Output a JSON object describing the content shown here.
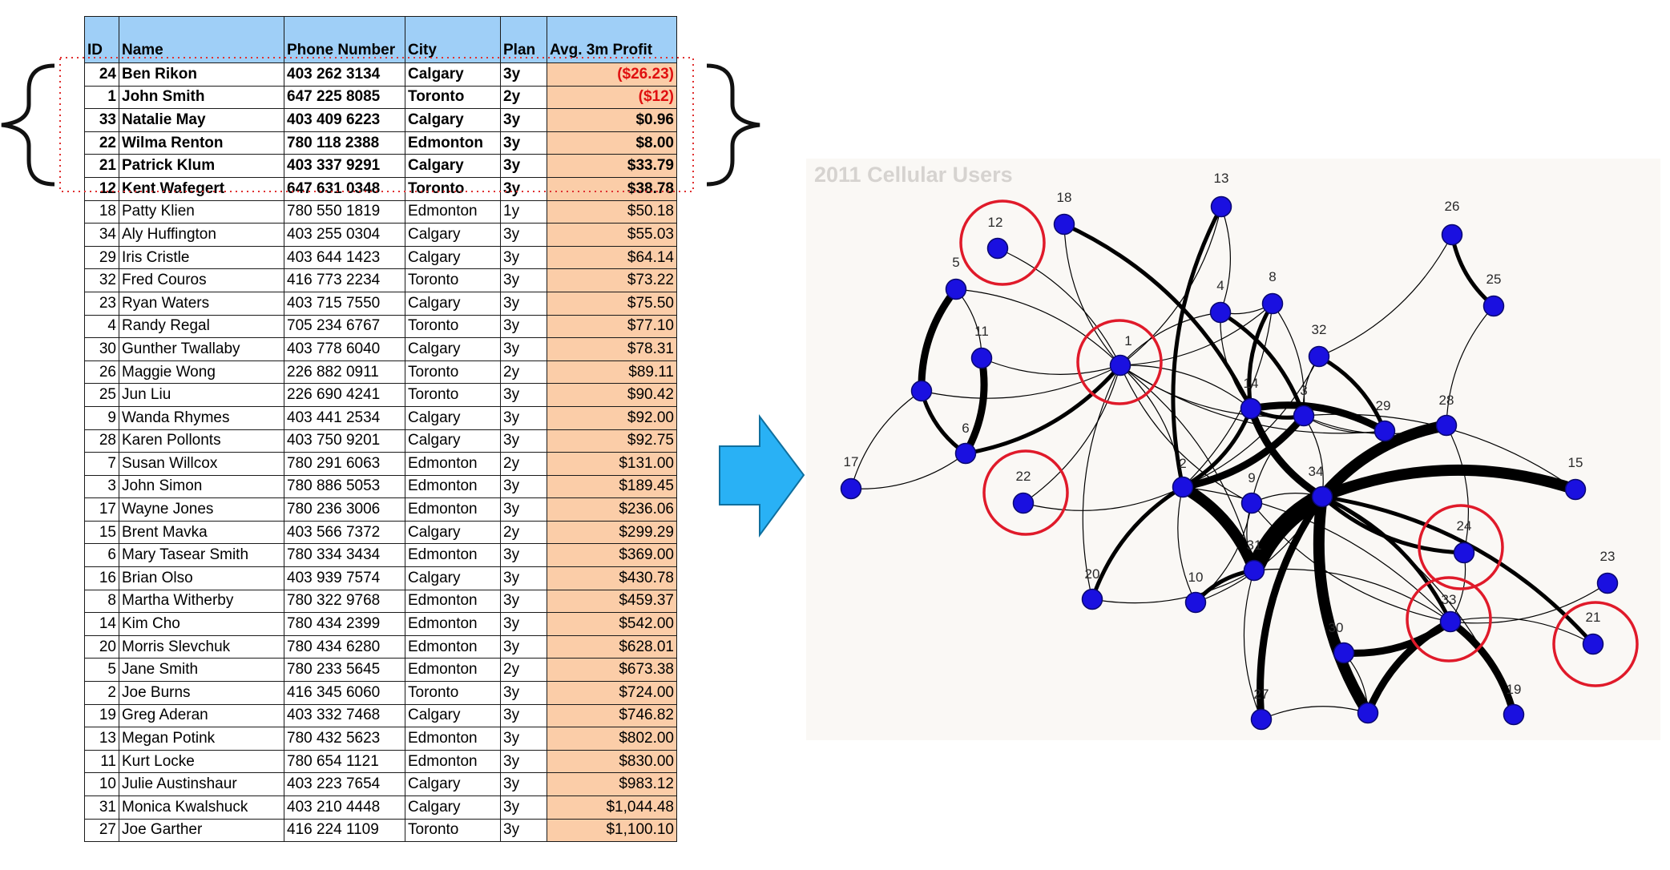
{
  "table": {
    "headers": [
      "ID",
      "Name",
      "Phone Number",
      "City",
      "Plan",
      "Avg. 3m Profit"
    ],
    "rows": [
      {
        "id": "24",
        "name": "Ben Rikon",
        "phone": "403 262 3134",
        "city": "Calgary",
        "plan": "3y",
        "profit": "($26.23)",
        "negative": true,
        "highlight": true
      },
      {
        "id": "1",
        "name": "John Smith",
        "phone": "647 225 8085",
        "city": "Toronto",
        "plan": "2y",
        "profit": "($12)",
        "negative": true,
        "highlight": true
      },
      {
        "id": "33",
        "name": "Natalie May",
        "phone": "403 409 6223",
        "city": "Calgary",
        "plan": "3y",
        "profit": "$0.96",
        "negative": false,
        "highlight": true
      },
      {
        "id": "22",
        "name": "Wilma Renton",
        "phone": "780 118 2388",
        "city": "Edmonton",
        "plan": "3y",
        "profit": "$8.00",
        "negative": false,
        "highlight": true
      },
      {
        "id": "21",
        "name": "Patrick Klum",
        "phone": "403 337 9291",
        "city": "Calgary",
        "plan": "3y",
        "profit": "$33.79",
        "negative": false,
        "highlight": true
      },
      {
        "id": "12",
        "name": "Kent Wafegert",
        "phone": "647 631 0348",
        "city": "Toronto",
        "plan": "3y",
        "profit": "$38.78",
        "negative": false,
        "highlight": true
      },
      {
        "id": "18",
        "name": "Patty Klien",
        "phone": "780 550 1819",
        "city": "Edmonton",
        "plan": "1y",
        "profit": "$50.18",
        "negative": false,
        "highlight": false
      },
      {
        "id": "34",
        "name": "Aly Huffington",
        "phone": "403 255 0304",
        "city": "Calgary",
        "plan": "3y",
        "profit": "$55.03",
        "negative": false,
        "highlight": false
      },
      {
        "id": "29",
        "name": "Iris Cristle",
        "phone": "403 644 1423",
        "city": "Calgary",
        "plan": "3y",
        "profit": "$64.14",
        "negative": false,
        "highlight": false
      },
      {
        "id": "32",
        "name": "Fred Couros",
        "phone": "416 773 2234",
        "city": "Toronto",
        "plan": "3y",
        "profit": "$73.22",
        "negative": false,
        "highlight": false
      },
      {
        "id": "23",
        "name": "Ryan Waters",
        "phone": "403 715 7550",
        "city": "Calgary",
        "plan": "3y",
        "profit": "$75.50",
        "negative": false,
        "highlight": false
      },
      {
        "id": "4",
        "name": "Randy Regal",
        "phone": "705 234 6767",
        "city": "Toronto",
        "plan": "3y",
        "profit": "$77.10",
        "negative": false,
        "highlight": false
      },
      {
        "id": "30",
        "name": "Gunther Twallaby",
        "phone": "403 778 6040",
        "city": "Calgary",
        "plan": "3y",
        "profit": "$78.31",
        "negative": false,
        "highlight": false
      },
      {
        "id": "26",
        "name": "Maggie Wong",
        "phone": "226 882 0911",
        "city": "Toronto",
        "plan": "2y",
        "profit": "$89.11",
        "negative": false,
        "highlight": false
      },
      {
        "id": "25",
        "name": "Jun Liu",
        "phone": "226 690 4241",
        "city": "Toronto",
        "plan": "3y",
        "profit": "$90.42",
        "negative": false,
        "highlight": false
      },
      {
        "id": "9",
        "name": "Wanda Rhymes",
        "phone": "403 441 2534",
        "city": "Calgary",
        "plan": "3y",
        "profit": "$92.00",
        "negative": false,
        "highlight": false
      },
      {
        "id": "28",
        "name": "Karen Pollonts",
        "phone": "403 750 9201",
        "city": "Calgary",
        "plan": "3y",
        "profit": "$92.75",
        "negative": false,
        "highlight": false
      },
      {
        "id": "7",
        "name": "Susan Willcox",
        "phone": "780 291 6063",
        "city": "Edmonton",
        "plan": "2y",
        "profit": "$131.00",
        "negative": false,
        "highlight": false
      },
      {
        "id": "3",
        "name": "John Simon",
        "phone": "780 886 5053",
        "city": "Edmonton",
        "plan": "3y",
        "profit": "$189.45",
        "negative": false,
        "highlight": false
      },
      {
        "id": "17",
        "name": "Wayne Jones",
        "phone": "780 236 3006",
        "city": "Edmonton",
        "plan": "3y",
        "profit": "$236.06",
        "negative": false,
        "highlight": false
      },
      {
        "id": "15",
        "name": "Brent Mavka",
        "phone": "403 566 7372",
        "city": "Calgary",
        "plan": "2y",
        "profit": "$299.29",
        "negative": false,
        "highlight": false
      },
      {
        "id": "6",
        "name": "Mary Tasear Smith",
        "phone": "780 334 3434",
        "city": "Edmonton",
        "plan": "3y",
        "profit": "$369.00",
        "negative": false,
        "highlight": false
      },
      {
        "id": "16",
        "name": "Brian Olso",
        "phone": "403 939 7574",
        "city": "Calgary",
        "plan": "3y",
        "profit": "$430.78",
        "negative": false,
        "highlight": false
      },
      {
        "id": "8",
        "name": "Martha Witherby",
        "phone": "780 322 9768",
        "city": "Edmonton",
        "plan": "3y",
        "profit": "$459.37",
        "negative": false,
        "highlight": false
      },
      {
        "id": "14",
        "name": "Kim Cho",
        "phone": "780 434 2399",
        "city": "Edmonton",
        "plan": "3y",
        "profit": "$542.00",
        "negative": false,
        "highlight": false
      },
      {
        "id": "20",
        "name": "Morris Slevchuk",
        "phone": "780 434 6280",
        "city": "Edmonton",
        "plan": "3y",
        "profit": "$628.01",
        "negative": false,
        "highlight": false
      },
      {
        "id": "5",
        "name": "Jane Smith",
        "phone": "780 233 5645",
        "city": "Edmonton",
        "plan": "2y",
        "profit": "$673.38",
        "negative": false,
        "highlight": false
      },
      {
        "id": "2",
        "name": "Joe Burns",
        "phone": "416 345 6060",
        "city": "Toronto",
        "plan": "3y",
        "profit": "$724.00",
        "negative": false,
        "highlight": false
      },
      {
        "id": "19",
        "name": "Greg Aderan",
        "phone": "403 332 7468",
        "city": "Calgary",
        "plan": "3y",
        "profit": "$746.82",
        "negative": false,
        "highlight": false
      },
      {
        "id": "13",
        "name": "Megan Potink",
        "phone": "780 432 5623",
        "city": "Edmonton",
        "plan": "3y",
        "profit": "$802.00",
        "negative": false,
        "highlight": false
      },
      {
        "id": "11",
        "name": "Kurt Locke",
        "phone": "780 654 1121",
        "city": "Edmonton",
        "plan": "3y",
        "profit": "$830.00",
        "negative": false,
        "highlight": false
      },
      {
        "id": "10",
        "name": "Julie Austinshaur",
        "phone": "403 223 7654",
        "city": "Calgary",
        "plan": "3y",
        "profit": "$983.12",
        "negative": false,
        "highlight": false
      },
      {
        "id": "31",
        "name": "Monica Kwalshuck",
        "phone": "403 210 4448",
        "city": "Calgary",
        "plan": "3y",
        "profit": "$1,044.48",
        "negative": false,
        "highlight": false
      },
      {
        "id": "27",
        "name": "Joe Garther",
        "phone": "416 224 1109",
        "city": "Toronto",
        "plan": "3y",
        "profit": "$1,100.10",
        "negative": false,
        "highlight": false
      }
    ]
  },
  "colors": {
    "header_bg": "#9fcff7",
    "profit_bg": "#fbcda8",
    "negative_text": "#e01010",
    "arrow": "#29b1f5",
    "node_fill": "#1a10e0",
    "circle_highlight": "#e01a2a",
    "panel_bg": "#faf8f5",
    "panel_title": "#d6d3d0"
  },
  "arrow_icon": "right-arrow-icon",
  "network": {
    "title": "2011 Cellular Users",
    "nodes": [
      "12",
      "18",
      "13",
      "26",
      "5",
      "4",
      "8",
      "25",
      "11",
      "1",
      "32",
      "14",
      "3",
      "29",
      "28",
      "6",
      "17",
      "22",
      "2",
      "9",
      "34",
      "15",
      "24",
      "31",
      "10",
      "20",
      "23",
      "33",
      "30",
      "21",
      "27",
      "19"
    ],
    "highlighted_nodes": [
      "12",
      "1",
      "22",
      "24",
      "33",
      "21"
    ],
    "edges": [
      {
        "from": "5",
        "to": "7",
        "weight": 3
      },
      {
        "from": "5",
        "to": "11",
        "weight": 1
      },
      {
        "from": "7",
        "to": "6",
        "weight": 2
      },
      {
        "from": "11",
        "to": "6",
        "weight": 3
      },
      {
        "from": "7",
        "to": "17",
        "weight": 1
      },
      {
        "from": "6",
        "to": "17",
        "weight": 1
      },
      {
        "from": "6",
        "to": "1",
        "weight": 2
      },
      {
        "from": "1",
        "to": "11",
        "weight": 1
      },
      {
        "from": "1",
        "to": "5",
        "weight": 1
      },
      {
        "from": "1",
        "to": "7",
        "weight": 1
      },
      {
        "from": "1",
        "to": "12",
        "weight": 1
      },
      {
        "from": "1",
        "to": "18",
        "weight": 1
      },
      {
        "from": "1",
        "to": "13",
        "weight": 1
      },
      {
        "from": "1",
        "to": "14",
        "weight": 1
      },
      {
        "from": "1",
        "to": "3",
        "weight": 1
      },
      {
        "from": "1",
        "to": "4",
        "weight": 1
      },
      {
        "from": "1",
        "to": "8",
        "weight": 1
      },
      {
        "from": "1",
        "to": "2",
        "weight": 1
      },
      {
        "from": "1",
        "to": "9",
        "weight": 1
      },
      {
        "from": "1",
        "to": "22",
        "weight": 1
      },
      {
        "from": "1",
        "to": "20",
        "weight": 1
      },
      {
        "from": "1",
        "to": "31",
        "weight": 1
      },
      {
        "from": "1",
        "to": "29",
        "weight": 1
      },
      {
        "from": "18",
        "to": "14",
        "weight": 2
      },
      {
        "from": "13",
        "to": "2",
        "weight": 2
      },
      {
        "from": "13",
        "to": "4",
        "weight": 1
      },
      {
        "from": "4",
        "to": "8",
        "weight": 1
      },
      {
        "from": "4",
        "to": "3",
        "weight": 2
      },
      {
        "from": "4",
        "to": "14",
        "weight": 1
      },
      {
        "from": "8",
        "to": "3",
        "weight": 1
      },
      {
        "from": "8",
        "to": "14",
        "weight": 2
      },
      {
        "from": "8",
        "to": "2",
        "weight": 1
      },
      {
        "from": "26",
        "to": "25",
        "weight": 2
      },
      {
        "from": "26",
        "to": "32",
        "weight": 1
      },
      {
        "from": "25",
        "to": "28",
        "weight": 1
      },
      {
        "from": "32",
        "to": "29",
        "weight": 2
      },
      {
        "from": "32",
        "to": "3",
        "weight": 1
      },
      {
        "from": "32",
        "to": "2",
        "weight": 1
      },
      {
        "from": "14",
        "to": "3",
        "weight": 2
      },
      {
        "from": "14",
        "to": "29",
        "weight": 3
      },
      {
        "from": "14",
        "to": "34",
        "weight": 3
      },
      {
        "from": "14",
        "to": "2",
        "weight": 2
      },
      {
        "from": "3",
        "to": "29",
        "weight": 1
      },
      {
        "from": "3",
        "to": "2",
        "weight": 3
      },
      {
        "from": "3",
        "to": "9",
        "weight": 1
      },
      {
        "from": "3",
        "to": "34",
        "weight": 1
      },
      {
        "from": "3",
        "to": "28",
        "weight": 1
      },
      {
        "from": "3",
        "to": "15",
        "weight": 1
      },
      {
        "from": "28",
        "to": "34",
        "weight": 4
      },
      {
        "from": "28",
        "to": "24",
        "weight": 1
      },
      {
        "from": "34",
        "to": "31",
        "weight": 5
      },
      {
        "from": "34",
        "to": "15",
        "weight": 4
      },
      {
        "from": "34",
        "to": "24",
        "weight": 2
      },
      {
        "from": "34",
        "to": "33",
        "weight": 2
      },
      {
        "from": "34",
        "to": "30",
        "weight": 2
      },
      {
        "from": "34",
        "to": "19",
        "weight": 1
      },
      {
        "from": "34",
        "to": "27",
        "weight": 3
      },
      {
        "from": "34",
        "to": "21",
        "weight": 2
      },
      {
        "from": "34",
        "to": "9",
        "weight": 1
      },
      {
        "from": "34",
        "to": "10",
        "weight": 1
      },
      {
        "from": "34",
        "to": "16",
        "weight": 4
      },
      {
        "from": "2",
        "to": "31",
        "weight": 4
      },
      {
        "from": "2",
        "to": "20",
        "weight": 2
      },
      {
        "from": "2",
        "to": "22",
        "weight": 1
      },
      {
        "from": "2",
        "to": "10",
        "weight": 1
      },
      {
        "from": "2",
        "to": "33",
        "weight": 1
      },
      {
        "from": "9",
        "to": "31",
        "weight": 1
      },
      {
        "from": "9",
        "to": "10",
        "weight": 1
      },
      {
        "from": "9",
        "to": "33",
        "weight": 1
      },
      {
        "from": "31",
        "to": "33",
        "weight": 1
      },
      {
        "from": "31",
        "to": "10",
        "weight": 2
      },
      {
        "from": "31",
        "to": "20",
        "weight": 1
      },
      {
        "from": "31",
        "to": "27",
        "weight": 1
      },
      {
        "from": "33",
        "to": "30",
        "weight": 3
      },
      {
        "from": "33",
        "to": "16",
        "weight": 3
      },
      {
        "from": "33",
        "to": "19",
        "weight": 3
      },
      {
        "from": "33",
        "to": "23",
        "weight": 1
      },
      {
        "from": "33",
        "to": "21",
        "weight": 1
      },
      {
        "from": "33",
        "to": "24",
        "weight": 1
      },
      {
        "from": "30",
        "to": "16",
        "weight": 1
      },
      {
        "from": "16",
        "to": "27",
        "weight": 1
      }
    ]
  }
}
